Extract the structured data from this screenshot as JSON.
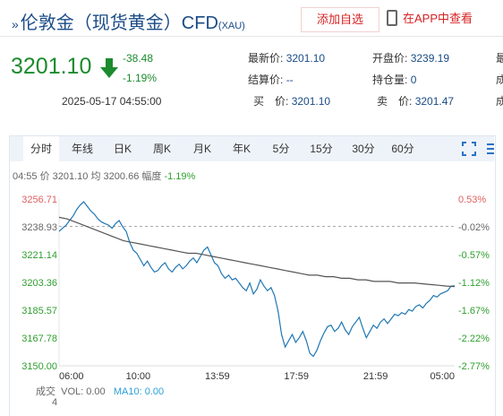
{
  "header": {
    "chevron": "»",
    "title": "伦敦金（现货黄金）CFD",
    "symbol": "(XAU)",
    "add_watch": "添加自选",
    "app_view": "在APP中查看"
  },
  "quote": {
    "price": "3201.10",
    "change": "-38.48",
    "change_pct": "-1.19%",
    "datetime": "2025-05-17 04:55:00",
    "fields": [
      {
        "label": "最新价:",
        "value": "3201.10"
      },
      {
        "label": "开盘价:",
        "value": "3239.19"
      },
      {
        "label": "结算价:",
        "value": "--"
      },
      {
        "label": "持仓量:",
        "value": "0"
      },
      {
        "label": "买　价:",
        "value": "3201.10"
      },
      {
        "label": "卖　价:",
        "value": "3201.47"
      }
    ],
    "cut_labels": [
      "最",
      "成",
      "成"
    ]
  },
  "tabs": [
    "分时",
    "年线",
    "日K",
    "周K",
    "月K",
    "年K",
    "5分",
    "15分",
    "30分",
    "60分"
  ],
  "info": {
    "time": "04:55",
    "price_label": "价",
    "price": "3201.10",
    "avg_label": "均",
    "avg": "3200.66",
    "pct_label": "幅度",
    "pct": "-1.19%"
  },
  "volume": {
    "label": "成交",
    "vol_text": "VOL: 0.00",
    "ma_text": "MA10: 0.00",
    "axis_top": "4",
    "axis_bot": ""
  },
  "chart_data": {
    "type": "line",
    "y_ticks": [
      "3256.71",
      "3238.93",
      "3221.14",
      "3203.36",
      "3185.57",
      "3167.78",
      "3150.00"
    ],
    "pct_ticks": [
      "0.53%",
      "-0.02%",
      "-0.57%",
      "-1.12%",
      "-1.67%",
      "-2.22%",
      "-2.77%"
    ],
    "x_ticks": [
      "06:00",
      "10:00",
      "13:59",
      "17:59",
      "21:59",
      "05:00"
    ],
    "ylim": [
      3150.0,
      3256.71
    ],
    "reference": 3239.19,
    "series": [
      {
        "color": "#1f77b4",
        "values": [
          3236,
          3238,
          3240,
          3243,
          3246,
          3250,
          3253,
          3255,
          3252,
          3249,
          3247,
          3244,
          3242,
          3241,
          3240,
          3238,
          3241,
          3243,
          3239,
          3236,
          3229,
          3224,
          3222,
          3218,
          3214,
          3217,
          3213,
          3210,
          3211,
          3214,
          3216,
          3212,
          3210,
          3213,
          3215,
          3212,
          3214,
          3217,
          3219,
          3216,
          3220,
          3224,
          3226,
          3221,
          3216,
          3214,
          3209,
          3206,
          3208,
          3205,
          3206,
          3203,
          3200,
          3198,
          3203,
          3196,
          3199,
          3205,
          3201,
          3198,
          3200,
          3195,
          3185,
          3170,
          3162,
          3166,
          3170,
          3165,
          3168,
          3172,
          3166,
          3158,
          3156,
          3160,
          3166,
          3171,
          3175,
          3176,
          3172,
          3174,
          3178,
          3173,
          3170,
          3175,
          3178,
          3181,
          3174,
          3168,
          3172,
          3176,
          3174,
          3178,
          3180,
          3177,
          3180,
          3183,
          3182,
          3184,
          3183,
          3186,
          3185,
          3188,
          3189,
          3187,
          3190,
          3192,
          3195,
          3194,
          3196,
          3197,
          3198,
          3201,
          3201.1
        ],
        "label": "price"
      },
      {
        "color": "#555555",
        "values": [
          3245,
          3244,
          3242,
          3240,
          3238,
          3236,
          3234,
          3232,
          3230,
          3229,
          3228,
          3227,
          3226,
          3225,
          3224,
          3223,
          3222,
          3222,
          3221,
          3220,
          3219,
          3218,
          3217,
          3216,
          3215,
          3214,
          3213,
          3212,
          3211,
          3210,
          3209,
          3208,
          3208,
          3207,
          3207,
          3206,
          3206,
          3205,
          3205,
          3204,
          3204,
          3204,
          3203,
          3203,
          3203,
          3202.5,
          3202,
          3201.5,
          3201,
          3200.66
        ],
        "label": "average"
      }
    ]
  }
}
